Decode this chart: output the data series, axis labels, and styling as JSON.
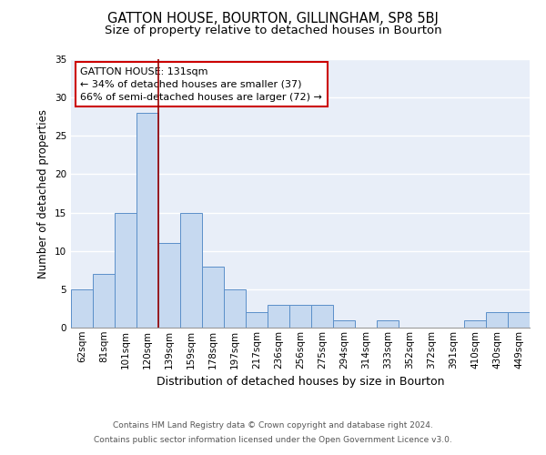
{
  "title": "GATTON HOUSE, BOURTON, GILLINGHAM, SP8 5BJ",
  "subtitle": "Size of property relative to detached houses in Bourton",
  "xlabel": "Distribution of detached houses by size in Bourton",
  "ylabel": "Number of detached properties",
  "categories": [
    "62sqm",
    "81sqm",
    "101sqm",
    "120sqm",
    "139sqm",
    "159sqm",
    "178sqm",
    "197sqm",
    "217sqm",
    "236sqm",
    "256sqm",
    "275sqm",
    "294sqm",
    "314sqm",
    "333sqm",
    "352sqm",
    "372sqm",
    "391sqm",
    "410sqm",
    "430sqm",
    "449sqm"
  ],
  "values": [
    5,
    7,
    15,
    28,
    11,
    15,
    8,
    5,
    2,
    3,
    3,
    3,
    1,
    0,
    1,
    0,
    0,
    0,
    1,
    2,
    2
  ],
  "bar_color": "#c6d9f0",
  "bar_edge_color": "#5b8fc9",
  "vline_x": 3.5,
  "vline_color": "#990000",
  "annotation_line1": "GATTON HOUSE: 131sqm",
  "annotation_line2": "← 34% of detached houses are smaller (37)",
  "annotation_line3": "66% of semi-detached houses are larger (72) →",
  "annotation_box_color": "#ffffff",
  "annotation_box_edge": "#cc0000",
  "ylim": [
    0,
    35
  ],
  "yticks": [
    0,
    5,
    10,
    15,
    20,
    25,
    30,
    35
  ],
  "background_color": "#e8eef8",
  "grid_color": "#ffffff",
  "footer_line1": "Contains HM Land Registry data © Crown copyright and database right 2024.",
  "footer_line2": "Contains public sector information licensed under the Open Government Licence v3.0.",
  "title_fontsize": 10.5,
  "subtitle_fontsize": 9.5,
  "xlabel_fontsize": 9,
  "ylabel_fontsize": 8.5,
  "tick_fontsize": 7.5,
  "annot_fontsize": 8,
  "footer_fontsize": 6.5
}
